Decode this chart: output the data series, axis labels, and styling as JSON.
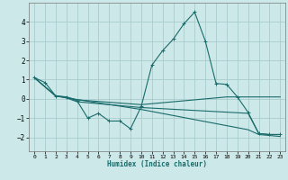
{
  "xlabel": "Humidex (Indice chaleur)",
  "bg_color": "#cce8e8",
  "grid_color": "#aacccc",
  "line_color": "#1a6b6b",
  "xlim": [
    -0.5,
    23.5
  ],
  "ylim": [
    -2.7,
    5.0
  ],
  "xticks": [
    0,
    1,
    2,
    3,
    4,
    5,
    6,
    7,
    8,
    9,
    10,
    11,
    12,
    13,
    14,
    15,
    16,
    17,
    18,
    19,
    20,
    21,
    22,
    23
  ],
  "yticks": [
    -2,
    -1,
    0,
    1,
    2,
    3,
    4
  ],
  "line1_x": [
    0,
    1,
    2,
    3,
    4,
    5,
    6,
    7,
    8,
    9,
    10,
    11,
    12,
    13,
    14,
    15,
    16,
    17,
    18,
    19,
    20,
    21,
    22,
    23
  ],
  "line1_y": [
    1.1,
    0.85,
    0.15,
    0.1,
    -0.1,
    -1.0,
    -0.75,
    -1.15,
    -1.15,
    -1.55,
    -0.4,
    1.75,
    2.5,
    3.1,
    3.9,
    4.5,
    3.0,
    0.8,
    0.75,
    0.1,
    -0.7,
    -1.8,
    -1.85,
    -1.85
  ],
  "line2_x": [
    0,
    2,
    3,
    4,
    10,
    18,
    20,
    21,
    22,
    23
  ],
  "line2_y": [
    1.1,
    0.15,
    0.1,
    -0.05,
    -0.3,
    0.1,
    0.1,
    0.1,
    0.1,
    0.1
  ],
  "line3_x": [
    0,
    2,
    3,
    4,
    10,
    20,
    21,
    22,
    23
  ],
  "line3_y": [
    1.1,
    0.15,
    0.05,
    -0.15,
    -0.45,
    -0.75,
    -1.8,
    -1.85,
    -1.85
  ],
  "line4_x": [
    0,
    2,
    3,
    10,
    20,
    21,
    22,
    23
  ],
  "line4_y": [
    1.1,
    0.15,
    0.05,
    -0.55,
    -1.6,
    -1.85,
    -1.9,
    -1.95
  ]
}
